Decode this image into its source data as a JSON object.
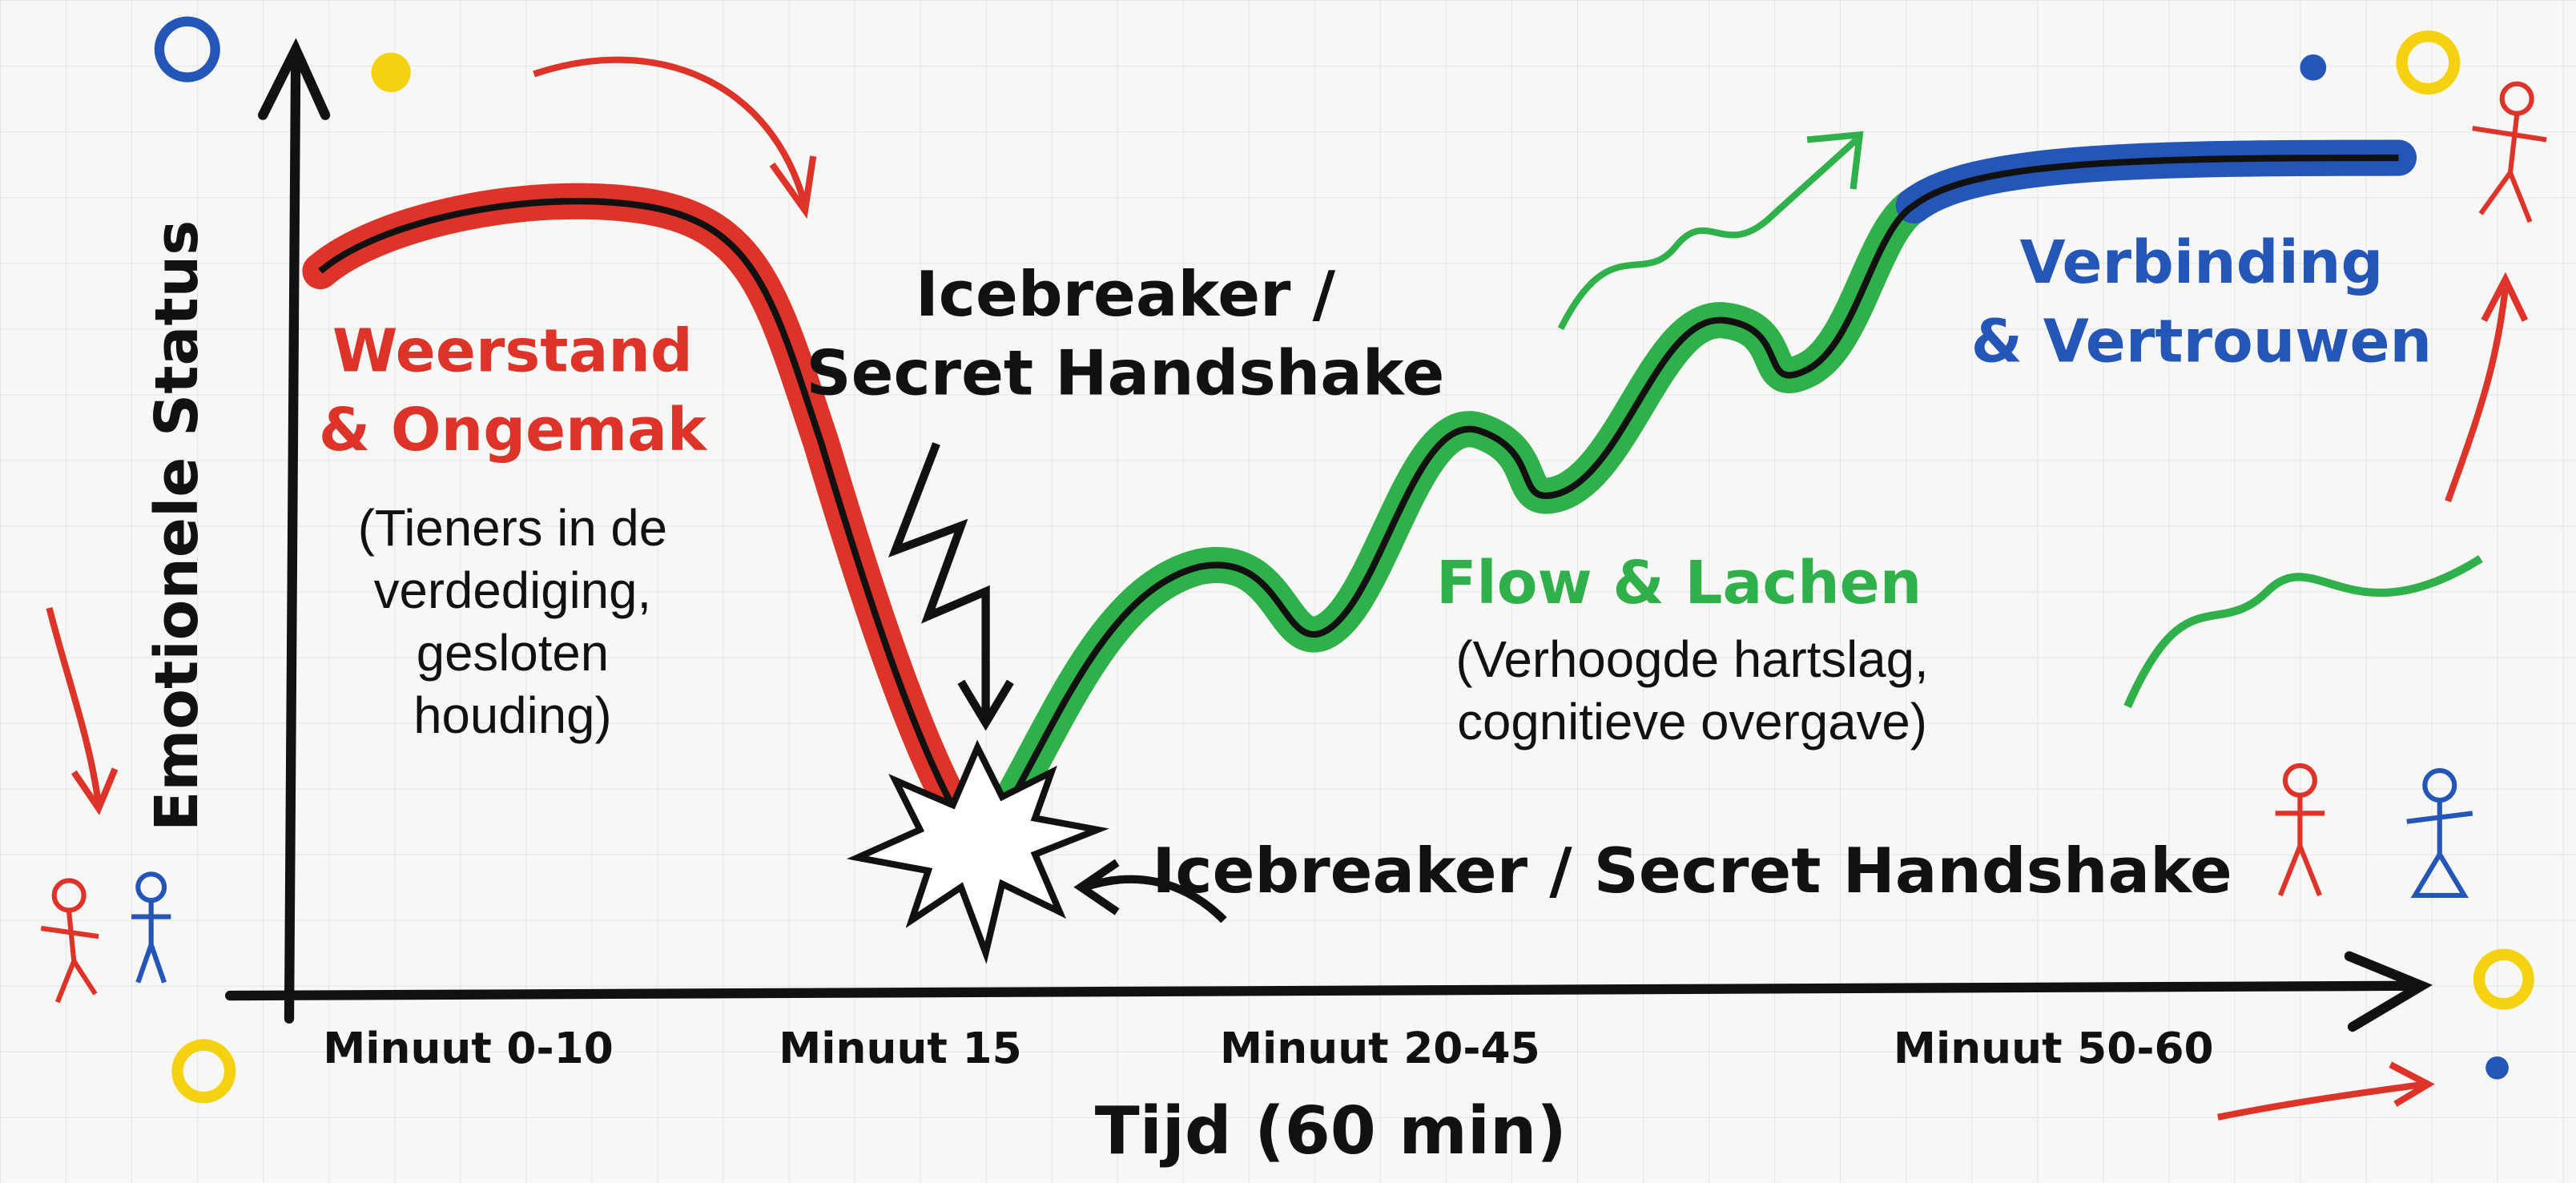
{
  "diagram": {
    "y_axis_label": "Emotionele Status",
    "x_axis_label": "Tijd (60 min)",
    "time_labels": [
      "Minuut 0-10",
      "Minuut 15",
      "Minuut 20-45",
      "Minuut 50-60"
    ],
    "phases": [
      {
        "title": [
          "Weerstand",
          "& Ongemak"
        ],
        "description": [
          "(Tieners in de",
          "verdediging,",
          "gesloten",
          "houding)"
        ]
      },
      {
        "title": [
          "Icebreaker /",
          "Secret Handshake"
        ]
      },
      {
        "title": [
          "Flow & Lachen"
        ],
        "description": [
          "(Verhoogde hartslag,",
          "cognitieve overgave)"
        ]
      },
      {
        "title": [
          "Verbinding",
          "& Vertrouwen"
        ]
      }
    ],
    "turning_point_label": "Icebreaker / Secret Handshake"
  }
}
